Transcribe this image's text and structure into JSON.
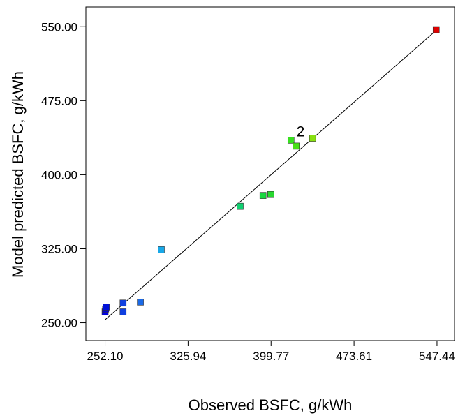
{
  "chart_data": {
    "type": "scatter",
    "xlabel": "Observed BSFC, g/kWh",
    "ylabel": "Model predicted BSFC, g/kWh",
    "x_ticks": [
      "252.10",
      "325.94",
      "399.77",
      "473.61",
      "547.44"
    ],
    "y_ticks": [
      "250.00",
      "325.00",
      "400.00",
      "475.00",
      "550.00"
    ],
    "xlim": [
      235,
      563
    ],
    "ylim": [
      232,
      570
    ],
    "grid": false,
    "fit_line": {
      "x": [
        252.1,
        547.44
      ],
      "y": [
        253,
        547
      ]
    },
    "annotations": [
      {
        "text": "2",
        "x": 426,
        "y": 439
      }
    ],
    "points": [
      {
        "x": 252.1,
        "y": 261,
        "color": "#0000e0"
      },
      {
        "x": 252.6,
        "y": 264,
        "color": "#0000e0"
      },
      {
        "x": 253.1,
        "y": 266,
        "color": "#0011d8"
      },
      {
        "x": 268.1,
        "y": 261,
        "color": "#0f3fe0"
      },
      {
        "x": 268.1,
        "y": 270,
        "color": "#1040e0"
      },
      {
        "x": 283.5,
        "y": 271,
        "color": "#1a6ae8"
      },
      {
        "x": 302.1,
        "y": 324,
        "color": "#18a8e8"
      },
      {
        "x": 372.3,
        "y": 368,
        "color": "#10d070"
      },
      {
        "x": 392.6,
        "y": 379,
        "color": "#18d840"
      },
      {
        "x": 399.5,
        "y": 380,
        "color": "#28d830"
      },
      {
        "x": 417.5,
        "y": 435,
        "color": "#38e020"
      },
      {
        "x": 422.1,
        "y": 429,
        "color": "#48e018"
      },
      {
        "x": 436.7,
        "y": 437,
        "color": "#88e010"
      },
      {
        "x": 546.7,
        "y": 547,
        "color": "#e00000"
      }
    ]
  }
}
